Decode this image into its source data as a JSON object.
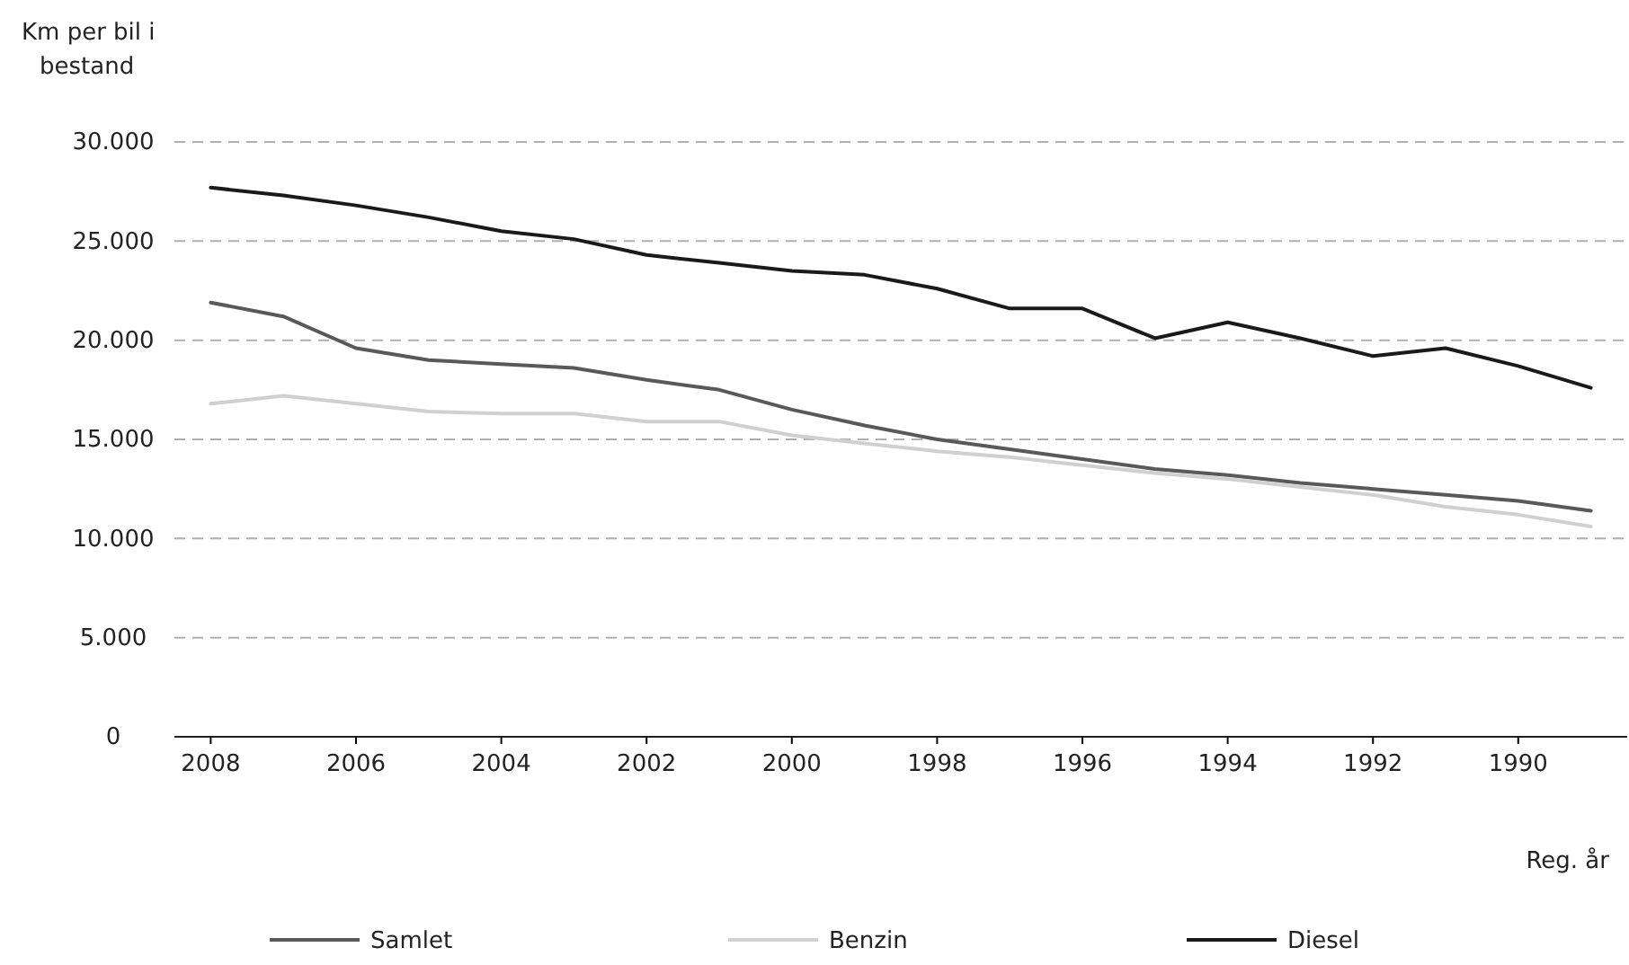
{
  "chart_data": {
    "type": "line",
    "ylabel": "Km per bil i bestand",
    "xlabel": "Reg. år",
    "x": [
      2008,
      2007,
      2006,
      2005,
      2004,
      2003,
      2002,
      2001,
      2000,
      1999,
      1998,
      1997,
      1996,
      1995,
      1994,
      1993,
      1992,
      1991,
      1990,
      1989
    ],
    "xlim": [
      2008.5,
      1988.5
    ],
    "xticks": [
      2008,
      2006,
      2004,
      2002,
      2000,
      1998,
      1996,
      1994,
      1992,
      1990
    ],
    "ylim": [
      0,
      30000
    ],
    "yticks": [
      {
        "value": 0,
        "label": "0"
      },
      {
        "value": 5000,
        "label": "5.000"
      },
      {
        "value": 10000,
        "label": "10.000"
      },
      {
        "value": 15000,
        "label": "15.000"
      },
      {
        "value": 20000,
        "label": "20.000"
      },
      {
        "value": 25000,
        "label": "25.000"
      },
      {
        "value": 30000,
        "label": "30.000"
      }
    ],
    "grid": "y",
    "legend": "bottom",
    "series": [
      {
        "name": "Samlet",
        "color": "#595959",
        "values": [
          21900,
          21200,
          19600,
          19000,
          18800,
          18600,
          18000,
          17500,
          16500,
          15700,
          15000,
          14500,
          14000,
          13500,
          13200,
          12800,
          12500,
          12200,
          11900,
          11400
        ]
      },
      {
        "name": "Benzin",
        "color": "#d0d0d0",
        "values": [
          16800,
          17200,
          16800,
          16400,
          16300,
          16300,
          15900,
          15900,
          15200,
          14800,
          14400,
          14100,
          13700,
          13300,
          13000,
          12600,
          12200,
          11600,
          11200,
          10600
        ]
      },
      {
        "name": "Diesel",
        "color": "#1a1a1a",
        "values": [
          27700,
          27300,
          26800,
          26200,
          25500,
          25100,
          24300,
          23900,
          23500,
          23300,
          22600,
          21600,
          21600,
          20100,
          20900,
          20100,
          19200,
          19600,
          18700,
          17600
        ]
      }
    ]
  }
}
